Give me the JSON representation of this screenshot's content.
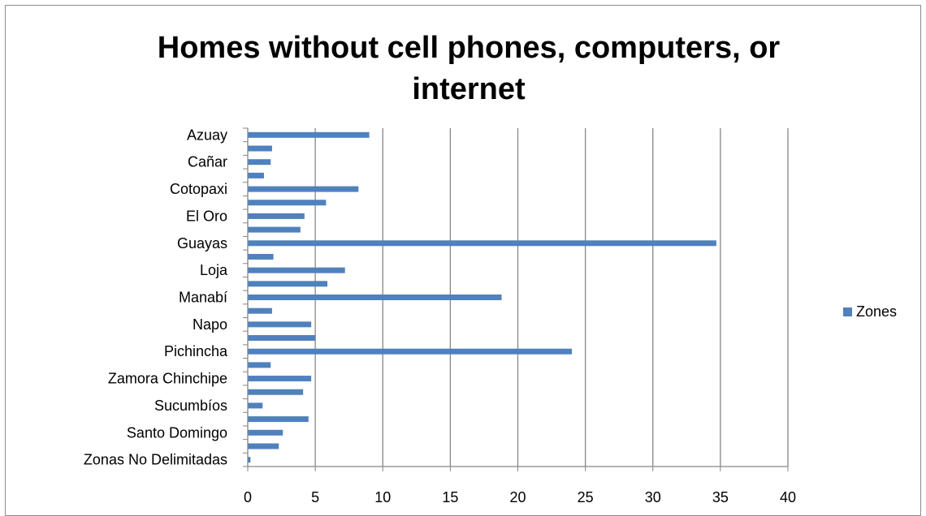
{
  "chart_data": {
    "type": "bar",
    "orientation": "horizontal",
    "title": "Homes without cell phones, computers, or internet",
    "xlabel": "",
    "ylabel": "",
    "xlim": [
      0,
      40
    ],
    "x_ticks": [
      0,
      5,
      10,
      15,
      20,
      25,
      30,
      35,
      40
    ],
    "grid": true,
    "legend_position": "right",
    "categories": [
      "Azuay",
      "",
      "Cañar",
      "",
      "Cotopaxi",
      "",
      "El Oro",
      "",
      "Guayas",
      "",
      "Loja",
      "",
      "Manabí",
      "",
      "Napo",
      "",
      "Pichincha",
      "",
      "Zamora Chinchipe",
      "",
      "Sucumbíos",
      "",
      "Santo Domingo",
      "",
      "Zonas No Delimitadas"
    ],
    "series": [
      {
        "name": "Zones",
        "color": "#4f81bd",
        "values": [
          9.0,
          1.8,
          1.7,
          1.2,
          8.2,
          5.8,
          4.2,
          3.9,
          34.7,
          1.9,
          7.2,
          5.9,
          18.8,
          1.8,
          4.7,
          5.0,
          24.0,
          1.7,
          4.7,
          4.1,
          1.1,
          4.5,
          2.6,
          2.3,
          0.2
        ]
      }
    ]
  }
}
